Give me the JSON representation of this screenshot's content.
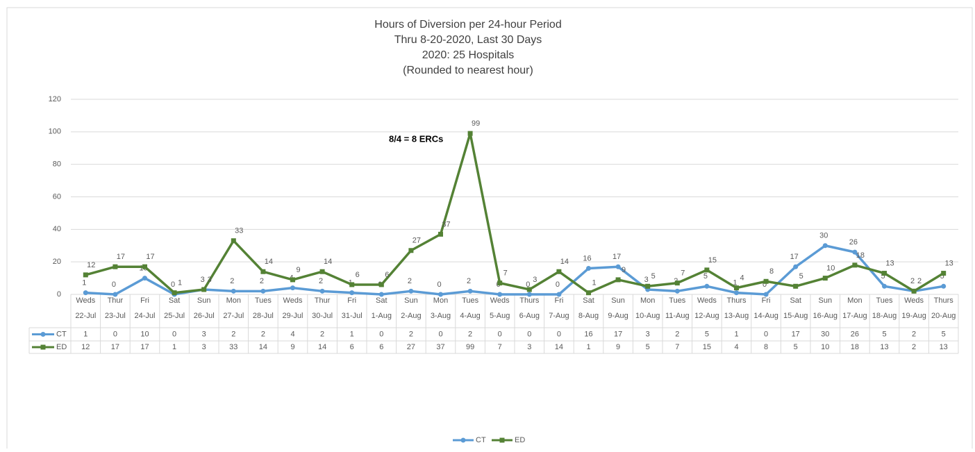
{
  "chart_data": {
    "type": "line",
    "title": "Hours of Diversion per 24-hour Period",
    "subtitle": [
      "Thru 8-20-2020, Last 30 Days",
      "2020:  25 Hospitals",
      "(Rounded to nearest hour)"
    ],
    "annotation": "8/4 = 8 ERCs",
    "categories": [
      [
        "Weds",
        "22-Jul"
      ],
      [
        "Thur",
        "23-Jul"
      ],
      [
        "Fri",
        "24-Jul"
      ],
      [
        "Sat",
        "25-Jul"
      ],
      [
        "Sun",
        "26-Jul"
      ],
      [
        "Mon",
        "27-Jul"
      ],
      [
        "Tues",
        "28-Jul"
      ],
      [
        "Weds",
        "29-Jul"
      ],
      [
        "Thur",
        "30-Jul"
      ],
      [
        "Fri",
        "31-Jul"
      ],
      [
        "Sat",
        "1-Aug"
      ],
      [
        "Sun",
        "2-Aug"
      ],
      [
        "Mon",
        "3-Aug"
      ],
      [
        "Tues",
        "4-Aug"
      ],
      [
        "Weds",
        "5-Aug"
      ],
      [
        "Thurs",
        "6-Aug"
      ],
      [
        "Fri",
        "7-Aug"
      ],
      [
        "Sat",
        "8-Aug"
      ],
      [
        "Sun",
        "9-Aug"
      ],
      [
        "Mon",
        "10-Aug"
      ],
      [
        "Tues",
        "11-Aug"
      ],
      [
        "Weds",
        "12-Aug"
      ],
      [
        "Thurs",
        "13-Aug"
      ],
      [
        "Fri",
        "14-Aug"
      ],
      [
        "Sat",
        "15-Aug"
      ],
      [
        "Sun",
        "16-Aug"
      ],
      [
        "Mon",
        "17-Aug"
      ],
      [
        "Tues",
        "18-Aug"
      ],
      [
        "Weds",
        "19-Aug"
      ],
      [
        "Thurs",
        "20-Aug"
      ]
    ],
    "series": [
      {
        "name": "CT",
        "color": "#5b9bd5",
        "marker": "circle",
        "values": [
          1,
          0,
          10,
          0,
          3,
          2,
          2,
          4,
          2,
          1,
          0,
          2,
          0,
          2,
          0,
          0,
          0,
          16,
          17,
          3,
          2,
          5,
          1,
          0,
          17,
          30,
          26,
          5,
          2,
          5
        ]
      },
      {
        "name": "ED",
        "color": "#548235",
        "marker": "square",
        "values": [
          12,
          17,
          17,
          1,
          3,
          33,
          14,
          9,
          14,
          6,
          6,
          27,
          37,
          99,
          7,
          3,
          14,
          1,
          9,
          5,
          7,
          15,
          4,
          8,
          5,
          10,
          18,
          13,
          2,
          13
        ]
      }
    ],
    "ylim": [
      0,
      120
    ],
    "yticks": [
      0,
      20,
      40,
      60,
      80,
      100,
      120
    ],
    "grid": true,
    "legend": "bottom"
  }
}
